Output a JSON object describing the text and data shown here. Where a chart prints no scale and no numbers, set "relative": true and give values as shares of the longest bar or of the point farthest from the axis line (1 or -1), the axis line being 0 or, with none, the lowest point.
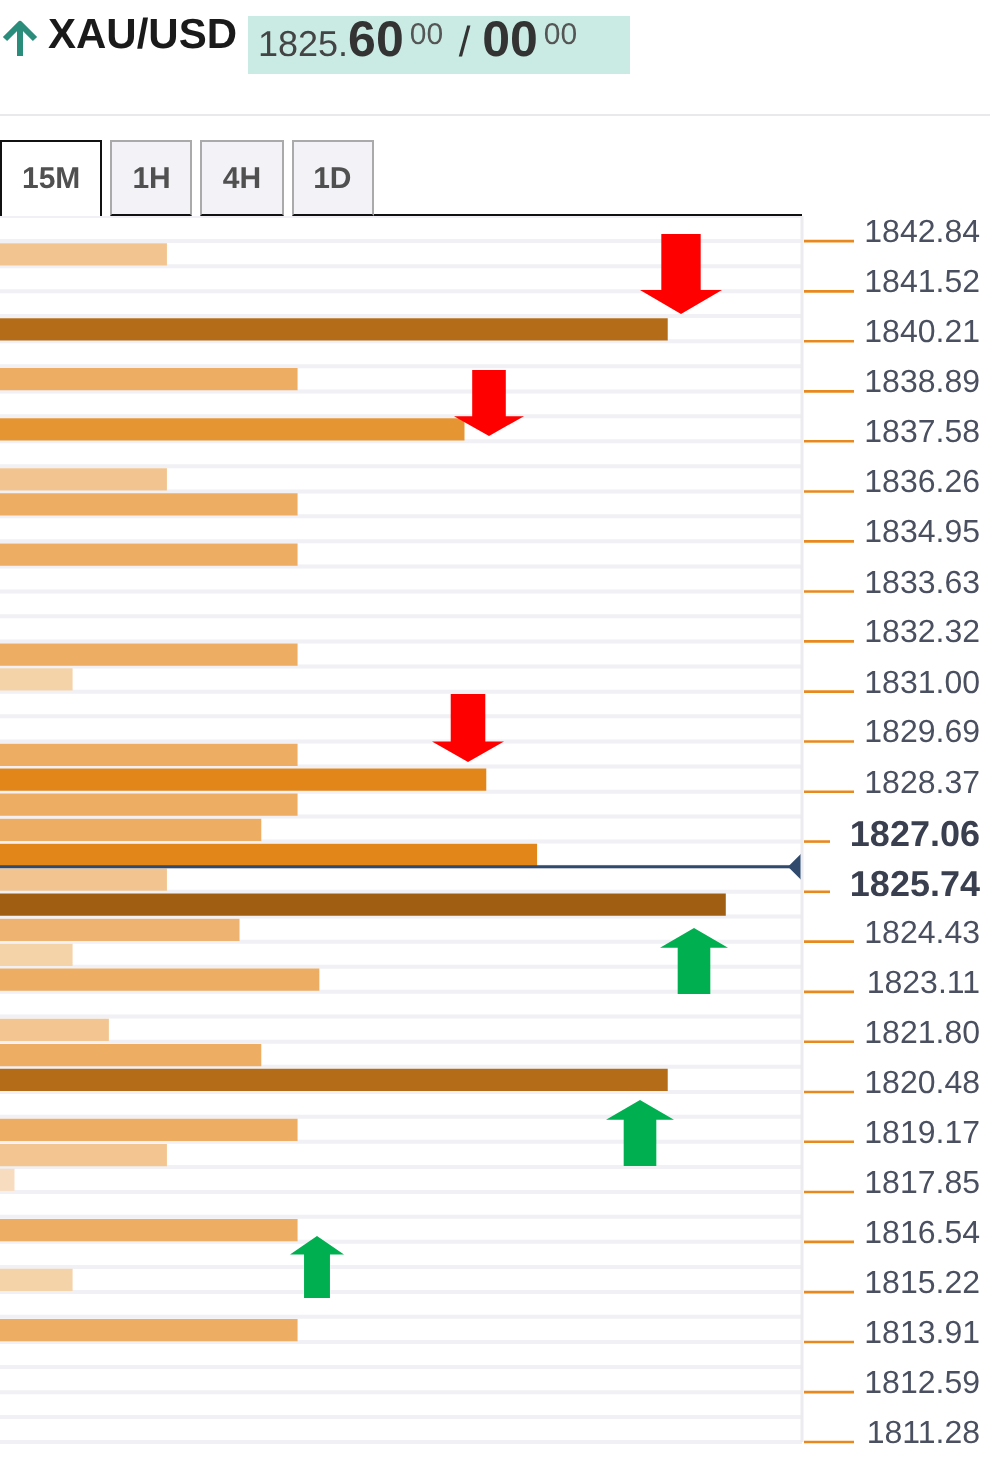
{
  "chart_data": {
    "type": "bar",
    "orientation": "horizontal",
    "relative": true,
    "title": "XAU/USD",
    "subtitle": "1825.60$^{00}$ / 00$^{00}$",
    "annotations": [
      "15M",
      "1H",
      "4H",
      "1D"
    ],
    "x": [
      1842.51,
      1840.54,
      1839.23,
      1837.91,
      1836.6,
      1835.94,
      1834.62,
      1831.99,
      1831.34,
      1829.36,
      1828.71,
      1828.05,
      1827.39,
      1826.73,
      1826.08,
      1825.42,
      1824.76,
      1824.1,
      1823.45,
      1822.13,
      1821.47,
      1820.82,
      1819.5,
      1818.84,
      1818.19,
      1816.87,
      1815.56,
      1814.24
    ],
    "values": [
      0.23,
      0.92,
      0.41,
      0.64,
      0.23,
      0.41,
      0.41,
      0.41,
      0.1,
      0.41,
      0.67,
      0.41,
      0.36,
      0.74,
      0.23,
      1,
      0.33,
      0.1,
      0.44,
      0.15,
      0.36,
      0.92,
      0.41,
      0.23,
      0.02,
      0.41,
      0.1,
      0.41
    ],
    "colors": [
      "#f2c590",
      "#b46c18",
      "#edad63",
      "#e69533",
      "#f2c590",
      "#edad63",
      "#edad63",
      "#edad63",
      "#f5d3a8",
      "#edad63",
      "#e2861a",
      "#edad63",
      "#edad63",
      "#e2861a",
      "#f2c590",
      "#a05e12",
      "#eeb370",
      "#f5d3a8",
      "#edad63",
      "#f3c691",
      "#edad63",
      "#b46c18",
      "#edad63",
      "#f3c691",
      "#f8dcc0",
      "#edad63",
      "#f5d3a8",
      "#edad63"
    ],
    "ylim": [
      1811.28,
      1843.5
    ],
    "yticks": [
      1842.84,
      1841.52,
      1840.21,
      1838.89,
      1837.58,
      1836.26,
      1834.95,
      1833.63,
      1832.32,
      {
        "value": 1831,
        "label": "1831.00"
      },
      1829.69,
      1828.37,
      1827.06,
      1825.74,
      1824.43,
      1823.11,
      {
        "value": 1821.8,
        "label": "1821.80"
      },
      1820.48,
      1819.17,
      1817.85,
      1816.54,
      1815.22,
      1813.91,
      1812.59,
      1811.28
    ],
    "tick_labels": "y",
    "grid": "y",
    "ref_lines": [
      {
        "axis": "y",
        "value": 1826.4,
        "color": "#2f4a6d"
      }
    ]
  }
}
